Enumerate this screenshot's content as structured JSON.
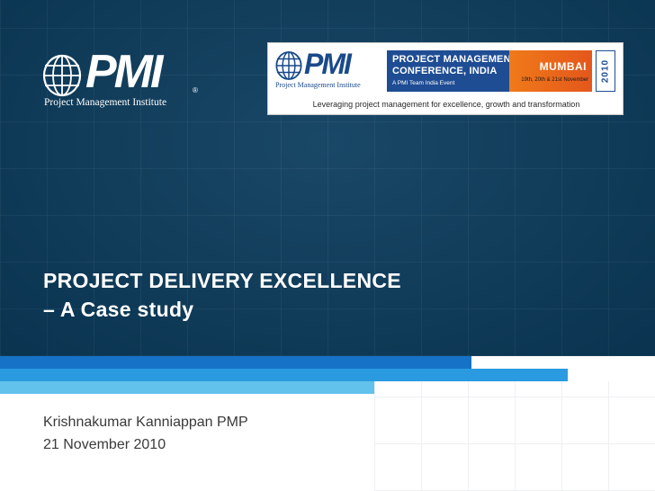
{
  "pmi_logo": {
    "wordmark": "PMI",
    "registered": "®",
    "tagline": "Project Management Institute",
    "icon": "globe-icon"
  },
  "conference_banner": {
    "logo_wordmark": "PMI",
    "logo_sub": "Project Management Institute",
    "title": "PROJECT MANAGEMENT\nCONFERENCE, INDIA",
    "subtitle": "A PMI Team India Event",
    "city": "MUMBAI",
    "dates": "19th, 20th & 21st November",
    "year": "2010",
    "tagline": "Leveraging project management for excellence, growth and transformation"
  },
  "title": {
    "line1": "PROJECT DELIVERY EXCELLENCE",
    "line2": "– A Case study"
  },
  "author": "Krishnakumar Kanniappan PMP",
  "date": "21 November 2010",
  "colors": {
    "background_dark": "#0b3c5d",
    "stripe_dark": "#1672c6",
    "stripe_mid": "#2a9be0",
    "stripe_light": "#62c2ec",
    "conference_blue": "#1f4d94",
    "conference_orange": "#f07a1a"
  }
}
